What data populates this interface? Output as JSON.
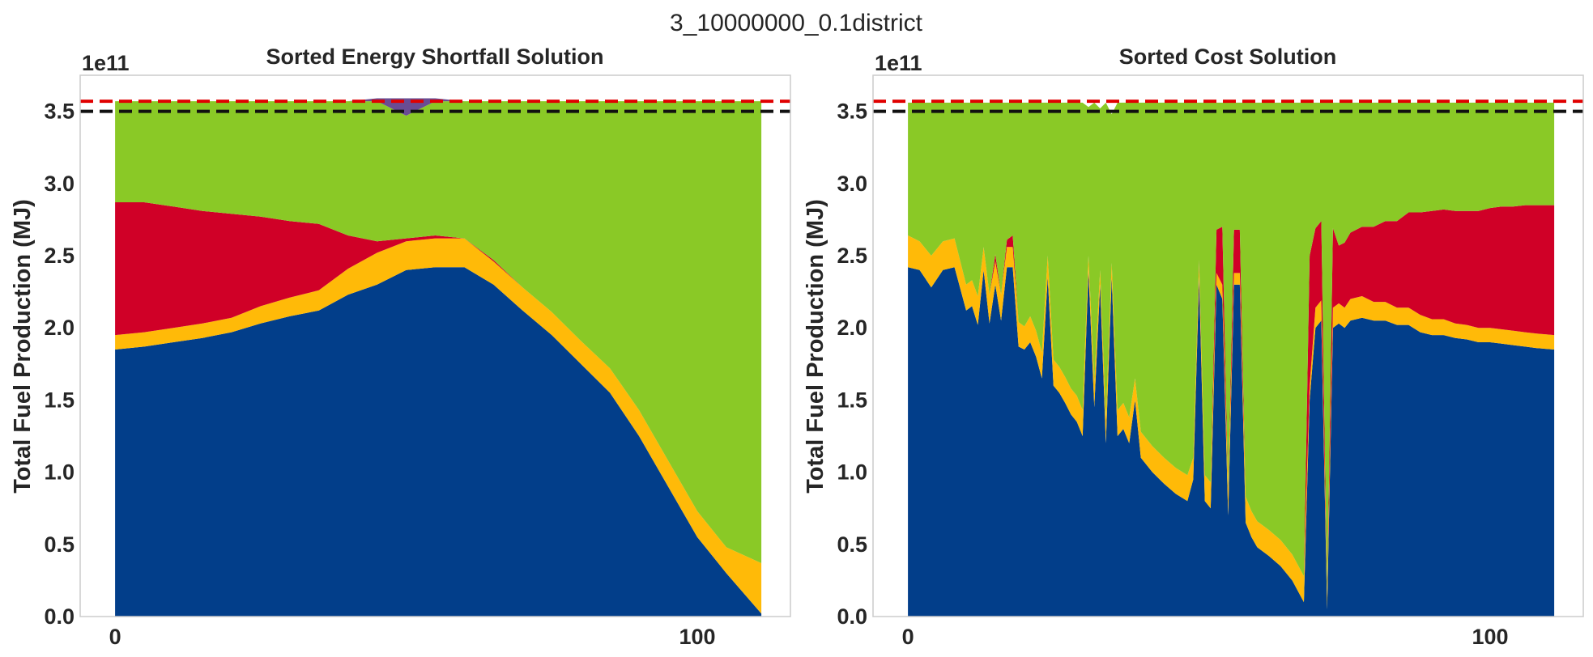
{
  "figure_title": "3_10000000_0.1district",
  "colors": {
    "series": [
      "#023e8a",
      "#ffba08",
      "#d00027",
      "#8ac926",
      "#6a4c93"
    ],
    "red_line": "#e00000",
    "black_line": "#111111"
  },
  "chart_data": [
    {
      "type": "area",
      "title": "Sorted Energy Shortfall Solution",
      "ylabel": "Total Fuel Production (MJ)",
      "y_offset_label": "1e11",
      "y_scale": 100000000000.0,
      "xlim": [
        -6,
        116
      ],
      "ylim": [
        0,
        3.75
      ],
      "xticks": [
        0,
        100
      ],
      "xtick_labels": [
        "0",
        "100"
      ],
      "yticks": [
        0,
        0.5,
        1,
        1.5,
        2,
        2.5,
        3,
        3.5
      ],
      "ytick_labels": [
        "0.0",
        "0.5",
        "1.0",
        "1.5",
        "2.0",
        "2.5",
        "3.0",
        "3.5"
      ],
      "grid": false,
      "hlines": [
        {
          "y": 3.57,
          "color": "red",
          "style": "dashed"
        },
        {
          "y": 3.5,
          "color": "black",
          "style": "dashed"
        }
      ],
      "x": [
        0,
        5,
        10,
        15,
        20,
        25,
        30,
        35,
        40,
        45,
        50,
        55,
        60,
        65,
        70,
        75,
        80,
        85,
        90,
        95,
        100,
        105,
        111
      ],
      "series": [
        {
          "values": [
            1.85,
            1.87,
            1.9,
            1.93,
            1.97,
            2.03,
            2.08,
            2.12,
            2.23,
            2.3,
            2.4,
            2.42,
            2.42,
            2.3,
            2.12,
            1.95,
            1.75,
            1.55,
            1.25,
            0.9,
            0.55,
            0.3,
            0.02
          ]
        },
        {
          "values": [
            0.1,
            0.1,
            0.1,
            0.1,
            0.1,
            0.12,
            0.13,
            0.14,
            0.18,
            0.22,
            0.2,
            0.2,
            0.2,
            0.16,
            0.16,
            0.16,
            0.16,
            0.17,
            0.18,
            0.18,
            0.18,
            0.18,
            0.35
          ]
        },
        {
          "values": [
            0.92,
            0.9,
            0.84,
            0.78,
            0.72,
            0.62,
            0.53,
            0.46,
            0.23,
            0.08,
            0.02,
            0.02,
            0.0,
            0.01,
            0.0,
            0.0,
            0.0,
            0.0,
            0.0,
            0.0,
            0.0,
            0.0,
            0.0
          ]
        },
        {
          "values": [
            0.7,
            0.7,
            0.73,
            0.76,
            0.78,
            0.8,
            0.83,
            0.85,
            0.93,
            0.97,
            0.85,
            0.93,
            0.95,
            1.1,
            1.29,
            1.46,
            1.66,
            1.85,
            2.14,
            2.49,
            2.84,
            3.09,
            3.2
          ]
        },
        {
          "values": [
            0,
            0,
            0,
            0,
            0,
            0,
            0,
            0,
            0,
            0.02,
            0.12,
            0.02,
            0,
            0,
            0,
            0,
            0,
            0,
            0,
            0,
            0,
            0,
            0
          ]
        }
      ]
    },
    {
      "type": "area",
      "title": "Sorted Cost Solution",
      "ylabel": "Total Fuel Production (MJ)",
      "y_offset_label": "1e11",
      "y_scale": 100000000000.0,
      "xlim": [
        -6,
        116
      ],
      "ylim": [
        0,
        3.75
      ],
      "xticks": [
        0,
        100
      ],
      "xtick_labels": [
        "0",
        "100"
      ],
      "yticks": [
        0,
        0.5,
        1,
        1.5,
        2,
        2.5,
        3,
        3.5
      ],
      "ytick_labels": [
        "0.0",
        "0.5",
        "1.0",
        "1.5",
        "2.0",
        "2.5",
        "3.0",
        "3.5"
      ],
      "grid": false,
      "hlines": [
        {
          "y": 3.57,
          "color": "red",
          "style": "dashed"
        },
        {
          "y": 3.5,
          "color": "black",
          "style": "dashed"
        }
      ],
      "x": [
        0,
        2,
        4,
        6,
        8,
        10,
        11,
        12,
        13,
        14,
        15,
        16,
        17,
        18,
        19,
        20,
        21,
        22,
        23,
        24,
        25,
        26,
        27,
        28,
        29,
        30,
        31,
        32,
        33,
        34,
        35,
        36,
        37,
        38,
        39,
        40,
        42,
        44,
        46,
        48,
        49,
        50,
        51,
        52,
        53,
        54,
        55,
        56,
        57,
        58,
        59,
        60,
        62,
        64,
        66,
        68,
        69,
        70,
        71,
        72,
        73,
        74,
        75,
        76,
        78,
        80,
        82,
        84,
        86,
        88,
        90,
        92,
        94,
        96,
        98,
        100,
        102,
        104,
        106,
        108,
        111
      ],
      "series": [
        {
          "values": [
            2.42,
            2.4,
            2.28,
            2.4,
            2.42,
            2.12,
            2.15,
            2.02,
            2.4,
            2.03,
            2.3,
            2.05,
            2.42,
            2.42,
            1.87,
            1.85,
            1.9,
            1.8,
            1.65,
            2.35,
            1.6,
            1.55,
            1.48,
            1.4,
            1.35,
            1.25,
            2.4,
            1.45,
            2.3,
            1.2,
            2.35,
            1.25,
            1.3,
            1.2,
            1.5,
            1.1,
            1.0,
            0.92,
            0.85,
            0.8,
            0.95,
            2.35,
            0.8,
            0.75,
            2.3,
            2.2,
            0.7,
            2.3,
            2.3,
            0.65,
            0.55,
            0.48,
            0.42,
            0.35,
            0.25,
            0.1,
            1.5,
            2.0,
            2.05,
            0.05,
            2.0,
            2.03,
            2.0,
            2.05,
            2.07,
            2.05,
            2.05,
            2.02,
            2.02,
            1.97,
            1.95,
            1.95,
            1.93,
            1.92,
            1.9,
            1.9,
            1.89,
            1.88,
            1.87,
            1.86,
            1.85
          ]
        },
        {
          "values": [
            0.22,
            0.2,
            0.22,
            0.2,
            0.2,
            0.18,
            0.18,
            0.2,
            0.16,
            0.2,
            0.16,
            0.18,
            0.14,
            0.14,
            0.17,
            0.16,
            0.18,
            0.18,
            0.18,
            0.15,
            0.18,
            0.18,
            0.18,
            0.18,
            0.18,
            0.18,
            0.1,
            0.18,
            0.1,
            0.18,
            0.1,
            0.18,
            0.18,
            0.18,
            0.15,
            0.18,
            0.18,
            0.18,
            0.18,
            0.18,
            0.15,
            0.1,
            0.18,
            0.18,
            0.08,
            0.1,
            0.18,
            0.08,
            0.08,
            0.18,
            0.18,
            0.18,
            0.18,
            0.18,
            0.18,
            0.18,
            0.1,
            0.14,
            0.14,
            0.1,
            0.14,
            0.14,
            0.14,
            0.15,
            0.15,
            0.13,
            0.13,
            0.12,
            0.12,
            0.12,
            0.11,
            0.11,
            0.1,
            0.1,
            0.1,
            0.1,
            0.1,
            0.1,
            0.1,
            0.1,
            0.1
          ]
        },
        {
          "values": [
            0,
            0,
            0,
            0,
            0,
            0,
            0,
            0,
            0,
            0,
            0.05,
            0,
            0.05,
            0.08,
            0,
            0,
            0,
            0,
            0,
            0,
            0,
            0,
            0,
            0,
            0,
            0,
            0,
            0,
            0,
            0,
            0,
            0,
            0,
            0,
            0,
            0,
            0,
            0,
            0,
            0,
            0,
            0.02,
            0,
            0,
            0.3,
            0.4,
            0,
            0.3,
            0.3,
            0,
            0,
            0,
            0,
            0,
            0,
            0,
            0.9,
            0.55,
            0.55,
            0,
            0.55,
            0.4,
            0.45,
            0.46,
            0.48,
            0.52,
            0.56,
            0.6,
            0.66,
            0.71,
            0.75,
            0.76,
            0.78,
            0.79,
            0.81,
            0.83,
            0.85,
            0.86,
            0.88,
            0.89,
            0.9
          ]
        },
        {
          "values": [
            0.92,
            0.96,
            1.06,
            0.96,
            0.94,
            1.26,
            1.23,
            1.34,
            1.0,
            1.33,
            1.05,
            1.33,
            0.95,
            0.92,
            1.52,
            1.55,
            1.48,
            1.58,
            1.73,
            1.06,
            1.78,
            1.83,
            1.9,
            1.98,
            2.03,
            2.13,
            1.03,
            1.93,
            1.12,
            2.18,
            1.03,
            2.13,
            2.08,
            2.18,
            1.91,
            2.28,
            2.38,
            2.46,
            2.53,
            2.58,
            2.46,
            1.09,
            2.58,
            2.63,
            0.88,
            0.86,
            2.68,
            0.88,
            0.88,
            2.73,
            2.83,
            2.9,
            2.96,
            3.03,
            3.13,
            3.28,
            1.06,
            0.87,
            0.82,
            3.41,
            0.87,
            0.99,
            0.97,
            0.9,
            0.86,
            0.86,
            0.82,
            0.82,
            0.76,
            0.76,
            0.75,
            0.74,
            0.75,
            0.75,
            0.75,
            0.73,
            0.72,
            0.72,
            0.71,
            0.71,
            0.71
          ]
        },
        {
          "values": [
            0,
            0,
            0,
            0,
            0,
            0,
            0,
            0,
            0,
            0,
            0,
            0,
            0,
            0,
            0,
            0,
            0,
            0,
            0,
            0,
            0,
            0,
            0,
            0,
            0,
            0,
            0,
            0,
            0,
            0,
            0,
            0,
            0,
            0,
            0,
            0,
            0,
            0,
            0,
            0,
            0,
            0,
            0,
            0,
            0,
            0,
            0,
            0,
            0,
            0,
            0,
            0,
            0,
            0,
            0,
            0,
            0,
            0,
            0,
            0,
            0,
            0,
            0,
            0,
            0,
            0,
            0,
            0,
            0,
            0,
            0,
            0,
            0,
            0,
            0,
            0,
            0,
            0,
            0,
            0,
            0
          ]
        }
      ]
    }
  ]
}
